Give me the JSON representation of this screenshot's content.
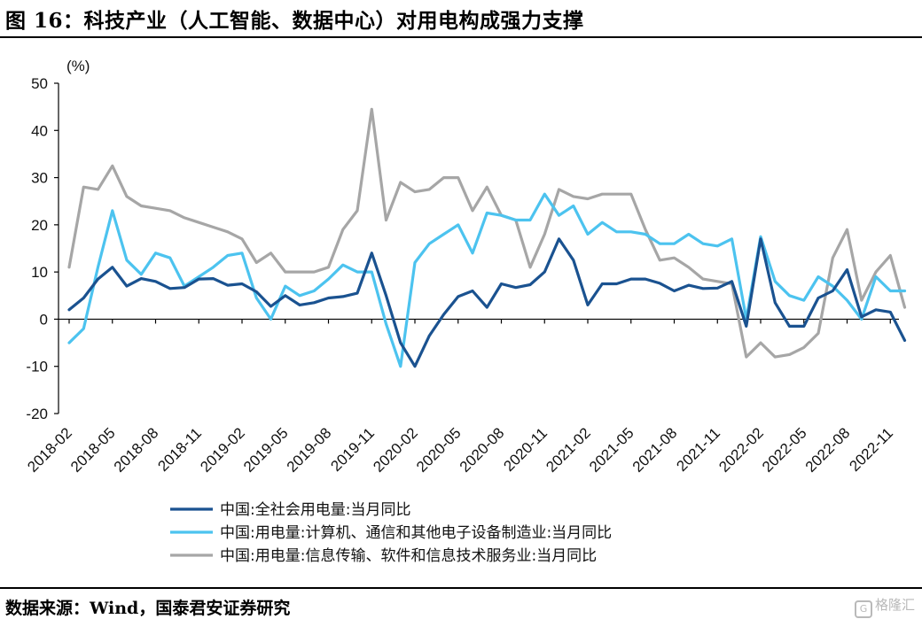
{
  "header": {
    "title": "图 16：科技产业（人工智能、数据中心）对用电构成强力支撑"
  },
  "footer": {
    "source": "数据来源：Wind，国泰君安证券研究",
    "watermark": "格隆汇",
    "watermark_icon": "G"
  },
  "colors": {
    "series1": "#1a5290",
    "series2": "#4cc3ef",
    "series3": "#a6a6a6",
    "axis": "#000000"
  },
  "chart_data": {
    "type": "line",
    "unit_label": "(%)",
    "ylim": [
      -20,
      50
    ],
    "yticks": [
      -20,
      -10,
      0,
      10,
      20,
      30,
      40,
      50
    ],
    "grid": false,
    "legend_position": "bottom-center",
    "x": [
      "2018-02",
      "2018-03",
      "2018-04",
      "2018-05",
      "2018-06",
      "2018-07",
      "2018-08",
      "2018-09",
      "2018-10",
      "2018-11",
      "2018-12",
      "2019-01",
      "2019-02",
      "2019-03",
      "2019-04",
      "2019-05",
      "2019-06",
      "2019-07",
      "2019-08",
      "2019-09",
      "2019-10",
      "2019-11",
      "2019-12",
      "2020-01",
      "2020-02",
      "2020-03",
      "2020-04",
      "2020-05",
      "2020-06",
      "2020-07",
      "2020-08",
      "2020-09",
      "2020-10",
      "2020-11",
      "2020-12",
      "2021-01",
      "2021-02",
      "2021-03",
      "2021-04",
      "2021-05",
      "2021-06",
      "2021-07",
      "2021-08",
      "2021-09",
      "2021-10",
      "2021-11",
      "2021-12",
      "2022-01",
      "2022-02",
      "2022-03",
      "2022-04",
      "2022-05",
      "2022-06",
      "2022-07",
      "2022-08",
      "2022-09",
      "2022-10",
      "2022-11",
      "2022-12"
    ],
    "xtick_labels": [
      "2018-02",
      "2018-05",
      "2018-08",
      "2018-11",
      "2019-02",
      "2019-05",
      "2019-08",
      "2019-11",
      "2020-02",
      "2020-05",
      "2020-08",
      "2020-11",
      "2021-02",
      "2021-05",
      "2021-08",
      "2021-11",
      "2022-02",
      "2022-05",
      "2022-08",
      "2022-11"
    ],
    "series": [
      {
        "name": "中国:全社会用电量:当月同比",
        "color": "#1a5290",
        "values": [
          2,
          4.5,
          8.5,
          11,
          7,
          8.6,
          8,
          6.5,
          6.7,
          8.5,
          8.6,
          7.2,
          7.5,
          5.8,
          2.7,
          5,
          3,
          3.5,
          4.5,
          4.8,
          5.5,
          14,
          5,
          -5,
          -10,
          -3.5,
          1,
          4.8,
          6,
          2.5,
          7.5,
          6.7,
          7.3,
          10,
          17,
          12.5,
          3,
          7.5,
          7.5,
          8.5,
          8.5,
          7.6,
          6,
          7.2,
          6.5,
          6.6,
          8,
          -1.5,
          17,
          3.5,
          -1.5,
          -1.5,
          4.5,
          6,
          10.5,
          0.5,
          2,
          1.5,
          -4.5
        ]
      },
      {
        "name": "中国:用电量:计算机、通信和其他电子设备制造业:当月同比",
        "color": "#4cc3ef",
        "values": [
          -5,
          -2,
          11,
          23,
          12.5,
          9.5,
          14,
          13,
          7,
          9,
          11,
          13.5,
          14,
          4.5,
          0,
          7,
          5,
          6,
          8.5,
          11.5,
          10,
          10,
          -1,
          -10,
          12,
          16,
          18,
          20,
          14,
          22.5,
          22,
          21,
          21,
          26.5,
          22,
          24,
          18,
          20.5,
          18.5,
          18.5,
          18,
          16,
          16,
          18,
          16,
          15.5,
          17,
          0,
          17.5,
          8,
          5,
          4,
          9,
          7,
          4,
          0,
          9,
          6,
          6
        ]
      },
      {
        "name": "中国:用电量:信息传输、软件和信息技术服务业:当月同比",
        "color": "#a6a6a6",
        "values": [
          11,
          28,
          27.5,
          32.5,
          26,
          24,
          23.5,
          23,
          21.5,
          20.5,
          19.5,
          18.5,
          17,
          12,
          14,
          10,
          10,
          10,
          11,
          19,
          23,
          44.5,
          21,
          29,
          27,
          27.5,
          30,
          30,
          23,
          28,
          22,
          21,
          11,
          18,
          27.5,
          26,
          25.5,
          26.5,
          26.5,
          26.5,
          19,
          12.5,
          13,
          11,
          8.5,
          8,
          7.5,
          -8,
          -5,
          -8,
          -7.5,
          -6,
          -3,
          13,
          19,
          4,
          10,
          13.5,
          2.5
        ]
      }
    ]
  }
}
